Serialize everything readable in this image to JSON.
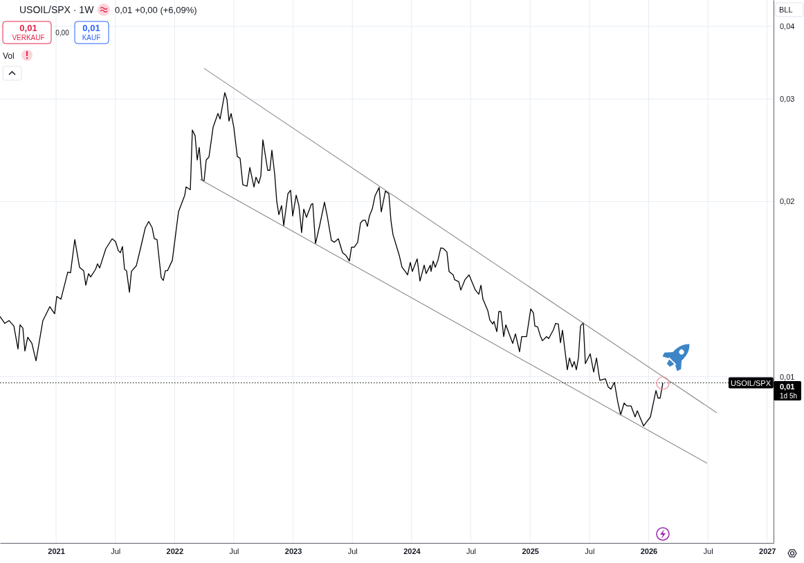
{
  "chart_data": {
    "type": "line",
    "title": "USOIL/SPX · 1W",
    "annotations": [
      "0,01 +0,00 (+6,09%)",
      "0,01",
      "VERKAUF",
      "0,00",
      "0,01",
      "KAUF",
      "Vol",
      "BLL",
      "0,01",
      "1d 5h"
    ],
    "log": "y",
    "grid": true,
    "marker": "none",
    "line_style": "solid",
    "xlim": [
      2020.527,
      2027.054
    ],
    "xticks": [
      2021,
      {
        "value": 2021.5,
        "label": "Jul"
      },
      2022,
      {
        "value": 2022.5,
        "label": "Jul"
      },
      2023,
      {
        "value": 2023.5,
        "label": "Jul"
      },
      2024,
      {
        "value": 2024.5,
        "label": "Jul"
      },
      2025,
      {
        "value": 2025.5,
        "label": "Jul"
      },
      2026,
      {
        "value": 2026.5,
        "label": "Jul"
      },
      2027
    ],
    "ylim": [
      0.00518,
      0.0444
    ],
    "yticks": [
      {
        "value": 0.01,
        "label": "0,01"
      },
      {
        "value": 0.02,
        "label": "0,02"
      },
      {
        "value": 0.03,
        "label": "0,03"
      },
      {
        "value": 0.04,
        "label": "0,04"
      }
    ],
    "ref_lines": [
      {
        "axis": "y",
        "value": 0.00976,
        "label": "USOIL/SPX",
        "color": "#000000",
        "line_style": "dotted"
      }
    ],
    "series": [
      {
        "color": "#000000",
        "x": [
          2020.527,
          2020.568,
          2020.603,
          2020.644,
          2020.679,
          2020.696,
          2020.72,
          2020.737,
          2020.761,
          2020.796,
          2020.831,
          2020.889,
          2020.947,
          2020.988,
          2021.006,
          2021.041,
          2021.099,
          2021.122,
          2021.158,
          2021.198,
          2021.233,
          2021.251,
          2021.274,
          2021.292,
          2021.333,
          2021.35,
          2021.368,
          2021.42,
          2021.473,
          2021.502,
          2021.525,
          2021.543,
          2021.56,
          2021.578,
          2021.595,
          2021.619,
          2021.636,
          2021.677,
          2021.712,
          2021.753,
          2021.782,
          2021.811,
          2021.829,
          2021.852,
          2021.887,
          2021.905,
          2021.922,
          2021.94,
          2021.981,
          2022.033,
          2022.086,
          2022.097,
          2022.133,
          2022.15,
          2022.173,
          2022.191,
          2022.208,
          2022.232,
          2022.249,
          2022.267,
          2022.29,
          2022.325,
          2022.366,
          2022.384,
          2022.424,
          2022.442,
          2022.459,
          2022.477,
          2022.5,
          2022.529,
          2022.553,
          2022.576,
          2022.611,
          2022.635,
          2022.67,
          2022.687,
          2022.71,
          2022.728,
          2022.745,
          2022.786,
          2022.804,
          2022.821,
          2022.845,
          2022.862,
          2022.88,
          2022.903,
          2022.921,
          2022.956,
          2022.979,
          2022.997,
          2023.026,
          2023.049,
          2023.072,
          2023.09,
          2023.113,
          2023.154,
          2023.166,
          2023.189,
          2023.224,
          2023.265,
          2023.288,
          2023.323,
          2023.347,
          2023.382,
          2023.417,
          2023.446,
          2023.475,
          2023.493,
          2023.516,
          2023.545,
          2023.569,
          2023.592,
          2023.609,
          2023.627,
          2023.644,
          2023.668,
          2023.691,
          2023.726,
          2023.744,
          2023.779,
          2023.808,
          2023.826,
          2023.843,
          2023.896,
          2023.919,
          2023.942,
          2023.966,
          2023.989,
          2024.006,
          2024.047,
          2024.071,
          2024.106,
          2024.123,
          2024.158,
          2024.164,
          2024.182,
          2024.199,
          2024.222,
          2024.246,
          2024.269,
          2024.298,
          2024.316,
          2024.351,
          2024.363,
          2024.398,
          2024.415,
          2024.45,
          2024.485,
          2024.538,
          2024.567,
          2024.585,
          2024.602,
          2024.643,
          2024.66,
          2024.684,
          2024.695,
          2024.719,
          2024.736,
          2024.754,
          2024.777,
          2024.795,
          2024.812,
          2024.853,
          2024.876,
          2024.911,
          2024.929,
          2024.97,
          2025.005,
          2025.028,
          2025.04,
          2025.063,
          2025.086,
          2025.104,
          2025.139,
          2025.157,
          2025.197,
          2025.215,
          2025.238,
          2025.256,
          2025.273,
          2025.314,
          2025.332,
          2025.355,
          2025.372,
          2025.39,
          2025.408,
          2025.425,
          2025.449,
          2025.466,
          2025.507,
          2025.536,
          2025.56,
          2025.577,
          2025.589,
          2025.635,
          2025.659,
          2025.682,
          2025.711,
          2025.74,
          2025.764,
          2025.793,
          2025.816,
          2025.851,
          2025.886,
          2025.904,
          2025.957,
          2026.015,
          2026.062,
          2026.079,
          2026.097,
          2026.12
        ],
        "values": [
          0.01269,
          0.01235,
          0.01249,
          0.01222,
          0.01116,
          0.01228,
          0.01212,
          0.01107,
          0.01169,
          0.01141,
          0.01065,
          0.01249,
          0.01319,
          0.01283,
          0.01374,
          0.01359,
          0.01513,
          0.01509,
          0.01721,
          0.01542,
          0.01521,
          0.01436,
          0.01504,
          0.01484,
          0.01529,
          0.01563,
          0.01538,
          0.0166,
          0.01726,
          0.01707,
          0.01647,
          0.01634,
          0.01674,
          0.01529,
          0.01521,
          0.01397,
          0.01517,
          0.01551,
          0.0166,
          0.01803,
          0.01848,
          0.01803,
          0.01726,
          0.01721,
          0.0148,
          0.01464,
          0.01521,
          0.01521,
          0.01585,
          0.0192,
          0.02051,
          0.02119,
          0.02096,
          0.02654,
          0.02596,
          0.02358,
          0.02478,
          0.02178,
          0.02172,
          0.02358,
          0.02385,
          0.02683,
          0.02834,
          0.02772,
          0.03077,
          0.02994,
          0.0275,
          0.02834,
          0.02683,
          0.02391,
          0.02372,
          0.02137,
          0.02125,
          0.02288,
          0.02119,
          0.02202,
          0.02149,
          0.02214,
          0.02554,
          0.02263,
          0.02263,
          0.02451,
          0.02226,
          0.02001,
          0.01899,
          0.01968,
          0.01818,
          0.02062,
          0.02091,
          0.01889,
          0.02051,
          0.01968,
          0.01769,
          0.01941,
          0.01879,
          0.01979,
          0.01984,
          0.01693,
          0.01818,
          0.01995,
          0.01889,
          0.01716,
          0.01702,
          0.01726,
          0.01634,
          0.01616,
          0.01581,
          0.0167,
          0.0167,
          0.01702,
          0.01838,
          0.01858,
          0.01858,
          0.01813,
          0.01889,
          0.01941,
          0.02045,
          0.02114,
          0.0192,
          0.02085,
          0.02062,
          0.01853,
          0.01754,
          0.01616,
          0.01542,
          0.01521,
          0.01496,
          0.01572,
          0.01517,
          0.01594,
          0.0146,
          0.01555,
          0.01504,
          0.01555,
          0.01517,
          0.01581,
          0.01542,
          0.01585,
          0.01665,
          0.0166,
          0.01638,
          0.01517,
          0.01496,
          0.01468,
          0.01456,
          0.01409,
          0.01468,
          0.01496,
          0.01409,
          0.01386,
          0.01436,
          0.01359,
          0.01298,
          0.01252,
          0.01232,
          0.01245,
          0.01195,
          0.01294,
          0.01294,
          0.01172,
          0.01228,
          0.01202,
          0.01141,
          0.01185,
          0.01104,
          0.01172,
          0.01172,
          0.01308,
          0.01287,
          0.01222,
          0.01218,
          0.01176,
          0.01153,
          0.01172,
          0.01163,
          0.01205,
          0.01235,
          0.01232,
          0.01144,
          0.01202,
          0.01028,
          0.01077,
          0.01039,
          0.01062,
          0.01028,
          0.0108,
          0.01222,
          0.01238,
          0.01053,
          0.01095,
          0.01019,
          0.01077,
          0.01019,
          0.00986,
          0.00992,
          0.0096,
          0.00952,
          0.00978,
          0.00904,
          0.0086,
          0.00901,
          0.00891,
          0.00891,
          0.00853,
          0.00874,
          0.00823,
          0.00853,
          0.00947,
          0.00919,
          0.00919,
          0.00976
        ]
      },
      {
        "color": "#888888",
        "x": [
          2022.249,
          2026.575
        ],
        "values": [
          0.03387,
          0.00867
        ]
      },
      {
        "color": "#888888",
        "x": [
          2022.214,
          2026.493
        ],
        "values": [
          0.02184,
          0.0071
        ]
      }
    ]
  }
}
